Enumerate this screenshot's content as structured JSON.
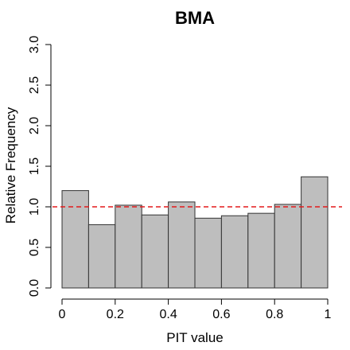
{
  "chart_data": {
    "type": "bar",
    "title": "BMA",
    "xlabel": "PIT value",
    "ylabel": "Relative Frequency",
    "bins": [
      {
        "x0": 0.0,
        "x1": 0.1,
        "value": 1.2
      },
      {
        "x0": 0.1,
        "x1": 0.2,
        "value": 0.78
      },
      {
        "x0": 0.2,
        "x1": 0.3,
        "value": 1.02
      },
      {
        "x0": 0.3,
        "x1": 0.4,
        "value": 0.9
      },
      {
        "x0": 0.4,
        "x1": 0.5,
        "value": 1.06
      },
      {
        "x0": 0.5,
        "x1": 0.6,
        "value": 0.86
      },
      {
        "x0": 0.6,
        "x1": 0.7,
        "value": 0.89
      },
      {
        "x0": 0.7,
        "x1": 0.8,
        "value": 0.92
      },
      {
        "x0": 0.8,
        "x1": 0.9,
        "value": 1.03
      },
      {
        "x0": 0.9,
        "x1": 1.0,
        "value": 1.37
      }
    ],
    "xlim": [
      0,
      1
    ],
    "ylim": [
      0,
      3
    ],
    "x_ticks": [
      0,
      0.2,
      0.4,
      0.6,
      0.8,
      1
    ],
    "x_tick_labels": [
      "0",
      "0.2",
      "0.4",
      "0.6",
      "0.8",
      "1"
    ],
    "y_ticks": [
      0,
      0.5,
      1,
      1.5,
      2,
      2.5,
      3
    ],
    "y_tick_labels": [
      "0.0",
      "0.5",
      "1.0",
      "1.5",
      "2.0",
      "2.5",
      "3.0"
    ],
    "reference_line": {
      "value": 1.0,
      "style": "dashed",
      "color": "#e41a1c"
    },
    "bar_fill": "#bebebe",
    "bar_stroke": "#333333",
    "grid": false
  }
}
